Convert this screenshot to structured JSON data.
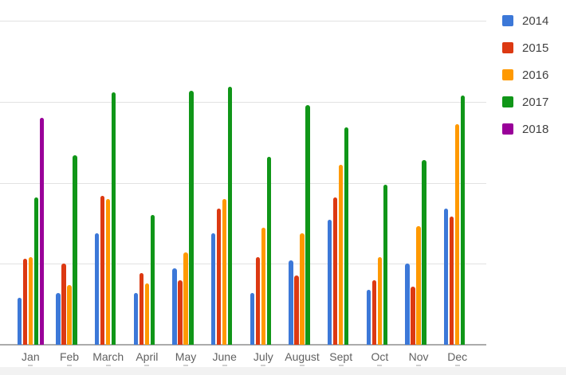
{
  "chart_data": {
    "type": "bar",
    "title": "",
    "xlabel": "",
    "ylabel": "",
    "categories": [
      "Jan",
      "Feb",
      "March",
      "April",
      "May",
      "June",
      "July",
      "August",
      "Sept",
      "Oct",
      "Nov",
      "Dec"
    ],
    "series": [
      {
        "name": "2014",
        "color": "#3c78d8",
        "values": [
          14.5,
          16,
          34.5,
          16,
          23.5,
          34.5,
          16,
          26,
          38.5,
          17,
          25,
          42
        ]
      },
      {
        "name": "2015",
        "color": "#dc3912",
        "values": [
          26.5,
          25,
          46,
          22,
          20,
          42,
          27,
          21.5,
          45.5,
          20,
          18,
          39.5
        ]
      },
      {
        "name": "2016",
        "color": "#ff9900",
        "values": [
          27,
          18.5,
          45,
          19,
          28.5,
          45,
          36,
          34.5,
          55.5,
          27,
          36.5,
          68
        ]
      },
      {
        "name": "2017",
        "color": "#109618",
        "values": [
          45.5,
          58.5,
          78,
          40,
          78.5,
          79.5,
          58,
          74,
          67,
          49.5,
          57,
          77
        ]
      },
      {
        "name": "2018",
        "color": "#990099",
        "values": [
          70,
          null,
          null,
          null,
          null,
          null,
          null,
          null,
          null,
          null,
          null,
          null
        ]
      }
    ],
    "ylim": [
      0,
      100
    ],
    "gridlines": [
      25,
      50,
      75,
      100
    ],
    "grid": true,
    "legend_position": "right"
  },
  "legend": {
    "items": [
      {
        "label": "2014",
        "color": "#3c78d8"
      },
      {
        "label": "2015",
        "color": "#dc3912"
      },
      {
        "label": "2016",
        "color": "#ff9900"
      },
      {
        "label": "2017",
        "color": "#109618"
      },
      {
        "label": "2018",
        "color": "#990099"
      }
    ]
  },
  "style_colors": {
    "gridline": "#e2e2e2",
    "baseline": "#ababab",
    "axis_label_text": "#616161",
    "legend_text": "#424242",
    "bottom_strip": "#f2f2f2",
    "background": "#ffffff"
  }
}
